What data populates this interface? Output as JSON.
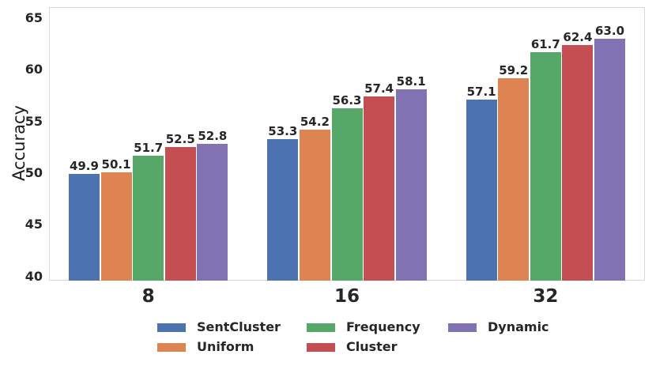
{
  "chart_data": {
    "type": "bar",
    "title": "",
    "xlabel": "",
    "ylabel": "Accuracy",
    "categories": [
      "8",
      "16",
      "32"
    ],
    "series": [
      {
        "name": "SentCluster",
        "color": "#4C72B0",
        "values": [
          49.9,
          53.3,
          57.1
        ]
      },
      {
        "name": "Uniform",
        "color": "#DD8452",
        "values": [
          50.1,
          54.2,
          59.2
        ]
      },
      {
        "name": "Frequency",
        "color": "#55A868",
        "values": [
          51.7,
          56.3,
          61.7
        ]
      },
      {
        "name": "Cluster",
        "color": "#C44E52",
        "values": [
          52.5,
          57.4,
          62.4
        ]
      },
      {
        "name": "Dynamic",
        "color": "#8172B3",
        "values": [
          52.8,
          58.1,
          63.0
        ]
      }
    ],
    "bar_value_labels": [
      [
        "49.9",
        "53.3",
        "57.1"
      ],
      [
        "50.1",
        "54.2",
        "59.2"
      ],
      [
        "51.7",
        "56.3",
        "61.7"
      ],
      [
        "52.5",
        "57.4",
        "62.4"
      ],
      [
        "52.8",
        "58.1",
        "63.0"
      ]
    ],
    "yticks": [
      40,
      45,
      50,
      55,
      60,
      65
    ],
    "ylim": [
      39.6,
      66.05
    ],
    "grid": false,
    "legend_position": "bottom",
    "legend_ncol": 3,
    "text_color": "#262626",
    "spine_color": "#d8d8d8",
    "background_color": "#ffffff"
  }
}
